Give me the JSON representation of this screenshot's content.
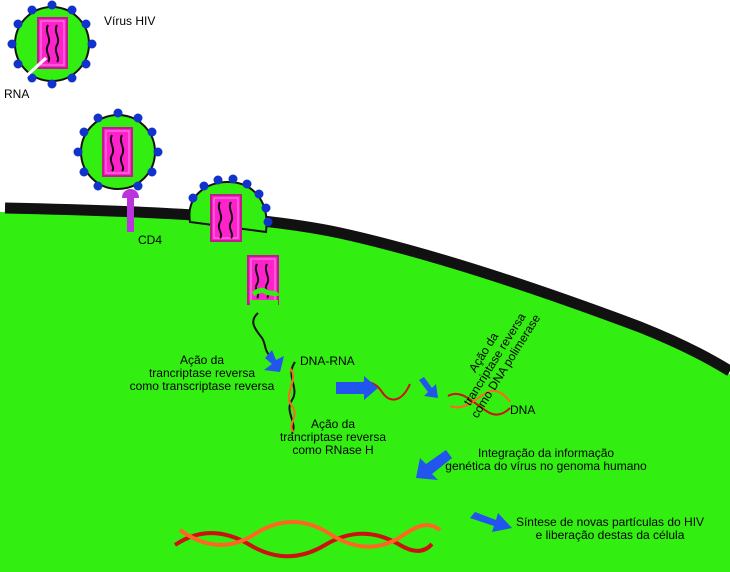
{
  "labels": {
    "virus": "Vírus HIV",
    "rna": "RNA",
    "cd4": "CD4",
    "rt_line1": "Ação da",
    "rt_line2": "trancriptase reversa",
    "rt_line3": "como transcriptase reversa",
    "dna_rna": "DNA-RNA",
    "rnase_line1": "Ação da",
    "rnase_line2": "trancriptase reversa",
    "rnase_line3": "como RNase H",
    "pol_line1": "Ação da",
    "pol_line2": "trancriptase reversa",
    "pol_line3": "como DNA polimerase",
    "dna": "DNA",
    "integ_line1": "Integração da informação",
    "integ_line2": "genética do vírus no genoma humano",
    "synth_line1": "Síntese de novas partículas do HIV",
    "synth_line2": "e liberação destas da célula"
  },
  "colors": {
    "cytoplasm": "#33ee11",
    "membrane": "#111111",
    "capsid": "#ff22cc",
    "capsid_border": "#c11a8e",
    "receptor_knob": "#1133cc",
    "cd4_receptor": "#bb33dd",
    "arrow": "#2255ee",
    "dna_red": "#cc1111",
    "dna_orange": "#ff6622"
  }
}
